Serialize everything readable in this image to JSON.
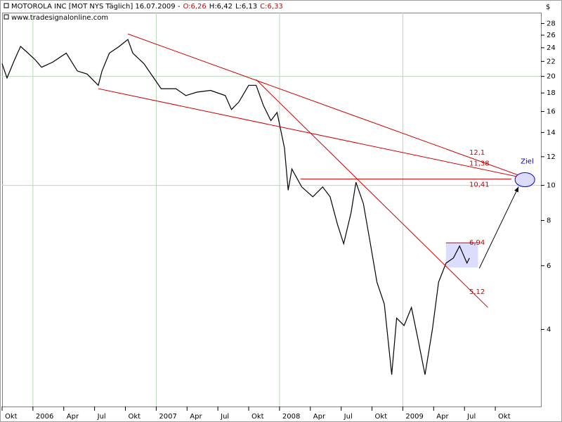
{
  "chart_data": {
    "type": "line",
    "title": "MOTOROLA INC [MOT NYS  Täglich] 16.07.2009 -",
    "quote": [
      "O:6,26",
      "H:6,42",
      "L:6,13",
      "C:6,33"
    ],
    "quote_colors": [
      "#d00000",
      "#000000",
      "#000000",
      "#d00000"
    ],
    "subtitle": "www.tradesignalonline.com",
    "currency": "$",
    "log_scale": true,
    "grid": true,
    "x": [
      2005.75,
      2005.79,
      2005.85,
      2005.9,
      2005.96,
      2006.02,
      2006.07,
      2006.16,
      2006.27,
      2006.36,
      2006.44,
      2006.53,
      2006.56,
      2006.62,
      2006.7,
      2006.77,
      2006.81,
      2006.9,
      2006.98,
      2007.04,
      2007.16,
      2007.24,
      2007.33,
      2007.44,
      2007.56,
      2007.61,
      2007.67,
      2007.75,
      2007.81,
      2007.87,
      2007.93,
      2007.98,
      2008.04,
      2008.07,
      2008.1,
      2008.18,
      2008.27,
      2008.35,
      2008.41,
      2008.47,
      2008.52,
      2008.58,
      2008.62,
      2008.68,
      2008.74,
      2008.79,
      2008.85,
      2008.91,
      2008.95,
      2009.01,
      2009.07,
      2009.12,
      2009.18,
      2009.24,
      2009.29,
      2009.35,
      2009.41,
      2009.46,
      2009.52,
      2009.54
    ],
    "series": [
      {
        "name": "MOTOROLA INC",
        "color": "#000000",
        "values": [
          21.7,
          19.8,
          22.2,
          24.2,
          23.2,
          22.2,
          21.2,
          21.9,
          23.2,
          20.7,
          20.3,
          18.9,
          20.7,
          23.2,
          24.2,
          25.3,
          23.2,
          21.7,
          19.8,
          18.5,
          18.5,
          17.7,
          18.1,
          18.3,
          17.7,
          16.2,
          17.0,
          18.9,
          18.9,
          16.6,
          15.1,
          15.9,
          12.7,
          9.7,
          11.1,
          9.9,
          9.3,
          9.9,
          9.3,
          7.8,
          6.9,
          8.4,
          10.2,
          8.9,
          6.8,
          5.4,
          4.7,
          3.0,
          4.3,
          4.1,
          4.6,
          3.8,
          3.0,
          4.0,
          5.4,
          6.1,
          6.3,
          6.8,
          6.1,
          6.3
        ]
      }
    ],
    "xlim": [
      2005.75,
      2010.12
    ],
    "xticks": [
      {
        "value": 2005.75,
        "label": "Okt"
      },
      {
        "value": 2006,
        "label": "2006"
      },
      {
        "value": 2006.25,
        "label": "Apr"
      },
      {
        "value": 2006.5,
        "label": "Jul"
      },
      {
        "value": 2006.75,
        "label": "Okt"
      },
      {
        "value": 2007,
        "label": "2007"
      },
      {
        "value": 2007.25,
        "label": "Apr"
      },
      {
        "value": 2007.5,
        "label": "Jul"
      },
      {
        "value": 2007.75,
        "label": "Okt"
      },
      {
        "value": 2008,
        "label": "2008"
      },
      {
        "value": 2008.25,
        "label": "Apr"
      },
      {
        "value": 2008.5,
        "label": "Jul"
      },
      {
        "value": 2008.75,
        "label": "Okt"
      },
      {
        "value": 2009,
        "label": "2009"
      },
      {
        "value": 2009.25,
        "label": "Apr"
      },
      {
        "value": 2009.5,
        "label": "Jul"
      },
      {
        "value": 2009.75,
        "label": "Okt"
      }
    ],
    "xgrid": [
      2006,
      2007,
      2008,
      2009
    ],
    "ylim": [
      2.45,
      30
    ],
    "yticks": [
      4,
      6,
      8,
      10,
      12,
      14,
      16,
      18,
      20,
      22,
      24,
      26,
      28
    ],
    "ygrid": [
      10,
      20
    ],
    "trendlines": [
      {
        "x": [
          2006.77,
          2010.03
        ],
        "y": [
          26.2,
          10.4
        ],
        "color": "#d00000"
      },
      {
        "x": [
          2006.53,
          2010.03
        ],
        "y": [
          18.5,
          10.4
        ],
        "color": "#d00000"
      },
      {
        "x": [
          2007.81,
          2009.69
        ],
        "y": [
          19.6,
          4.6
        ],
        "color": "#d00000"
      },
      {
        "x": [
          2008.17,
          2009.88
        ],
        "y": [
          10.41,
          10.41
        ],
        "color": "#d00000"
      },
      {
        "x": [
          2009.35,
          2009.61
        ],
        "y": [
          6.94,
          6.94
        ],
        "color": "#d00000"
      }
    ],
    "zone": {
      "x": [
        2009.35,
        2009.61
      ],
      "y": [
        5.93,
        6.94
      ],
      "color": "#dcdcff"
    },
    "target": {
      "label": "Ziel",
      "x": 2009.99,
      "y": 10.37,
      "color": "#0000cc",
      "from_x": 2009.62,
      "from_y": 5.9
    },
    "levels": [
      {
        "value": 12.1,
        "label": "12,1"
      },
      {
        "value": 11.38,
        "label": "11,38"
      },
      {
        "value": 10.41,
        "label": "10,41"
      },
      {
        "value": 6.94,
        "label": "6,94"
      },
      {
        "value": 5.12,
        "label": "5,12"
      }
    ],
    "level_color": "#d00000"
  }
}
